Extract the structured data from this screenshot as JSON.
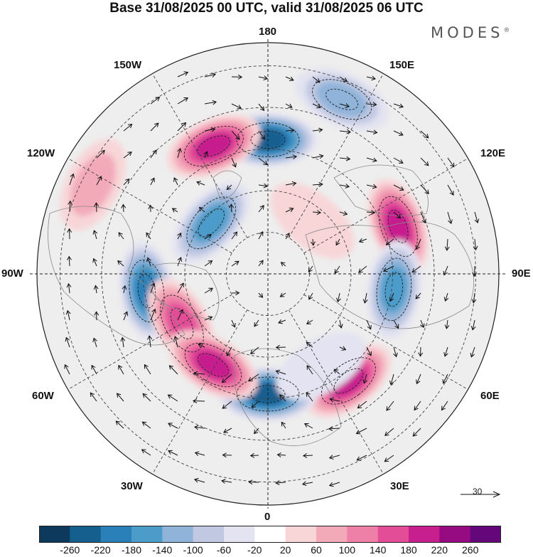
{
  "title": "Base 31/08/2025 00 UTC, valid 31/08/2025 06 UTC",
  "brand": "MODES",
  "brand_mark": "®",
  "longitude_labels": {
    "n180": "180",
    "e150": "150E",
    "e120": "120E",
    "e90": "90E",
    "e60": "60E",
    "e30": "30E",
    "s0": "0",
    "w30": "30W",
    "w60": "60W",
    "w90": "90W",
    "w120": "120W",
    "w150": "150W"
  },
  "reference_vector": {
    "label": "30",
    "icon": "arrow-right-icon"
  },
  "colorbar": {
    "ticks": [
      "-260",
      "-220",
      "-180",
      "-140",
      "-100",
      "-60",
      "-20",
      "20",
      "60",
      "100",
      "140",
      "180",
      "220",
      "260"
    ],
    "colors": [
      "#0d3a5c",
      "#155f8f",
      "#2a80b9",
      "#4c9cca",
      "#8fb3d9",
      "#c0c8e2",
      "#e3e3f1",
      "#ffffff",
      "#f8d6d8",
      "#f3aab8",
      "#ee7fa6",
      "#e34d98",
      "#c71f8e",
      "#960b82",
      "#63077a"
    ]
  },
  "anomalies": [
    {
      "lon": 180,
      "r": 0.58,
      "value": -240
    },
    {
      "lon": 157,
      "r": 0.82,
      "value": -140
    },
    {
      "lon": 203,
      "r": 0.6,
      "value": 220
    },
    {
      "lon": 228,
      "r": 0.33,
      "value": -160
    },
    {
      "lon": 243,
      "r": 0.85,
      "value": 100
    },
    {
      "lon": 110,
      "r": 0.6,
      "value": 220
    },
    {
      "lon": 278,
      "r": 0.53,
      "value": -200
    },
    {
      "lon": 300,
      "r": 0.43,
      "value": 160
    },
    {
      "lon": 83,
      "r": 0.55,
      "value": -190
    },
    {
      "lon": 37,
      "r": 0.58,
      "value": 210
    },
    {
      "lon": 0,
      "r": 0.52,
      "value": -240
    },
    {
      "lon": 329,
      "r": 0.46,
      "value": 200
    },
    {
      "lon": 30,
      "r": 0.46,
      "value": -60
    },
    {
      "lon": 140,
      "r": 0.3,
      "value": 60
    }
  ]
}
